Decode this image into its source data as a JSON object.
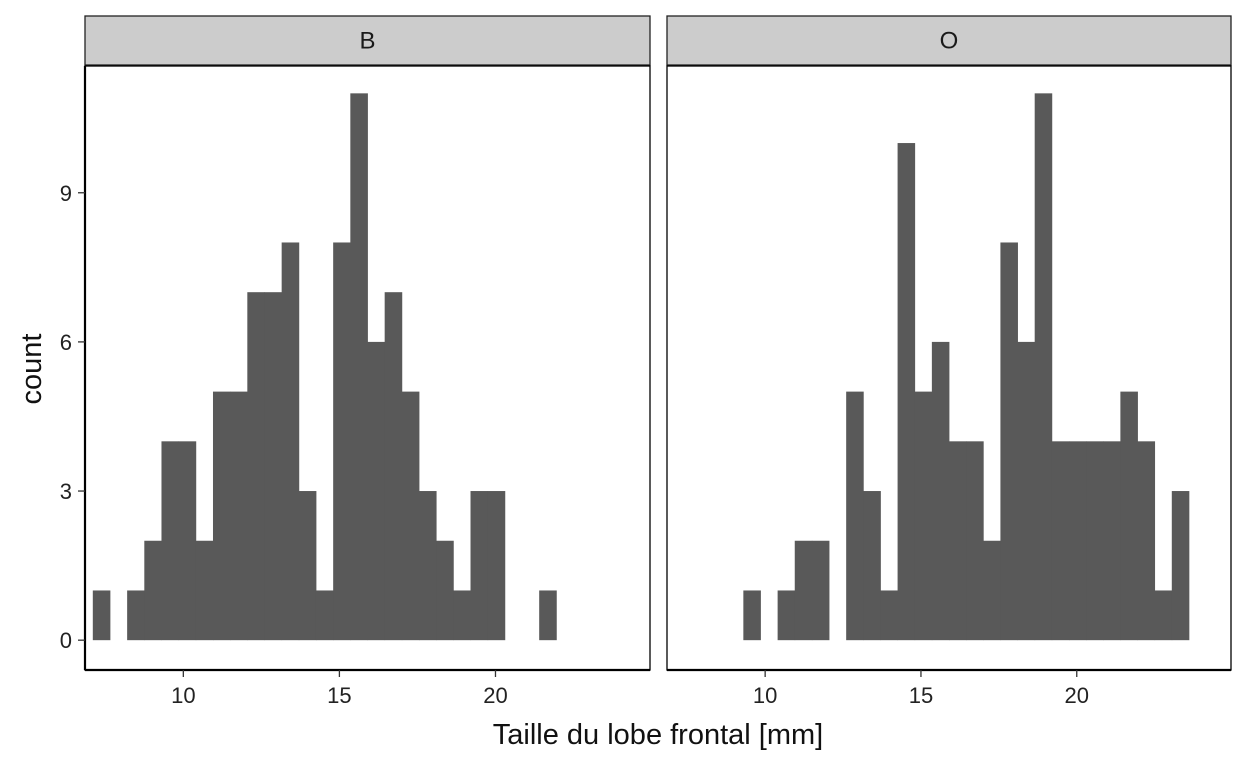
{
  "chart_data": {
    "type": "bar",
    "style": "faceted-histogram",
    "xlabel": "Taille du lobe frontal  [mm]",
    "ylabel": "count",
    "bar_color": "#595959",
    "strip_color": "#cccccc",
    "grid": false,
    "x_ticks": [
      10,
      15,
      20
    ],
    "x_tick_labels": [
      "10",
      "15",
      "20"
    ],
    "y_ticks": [
      0,
      3,
      6,
      9
    ],
    "y_tick_labels": [
      "0",
      "3",
      "6",
      "9"
    ],
    "xlim": [
      6.85,
      24.95
    ],
    "ylim": [
      -0.6,
      11.55
    ],
    "bin_width": 0.55,
    "facets": [
      {
        "label": "B",
        "bins": [
          {
            "x0": 7.1,
            "count": 1
          },
          {
            "x0": 7.65,
            "count": 0
          },
          {
            "x0": 8.2,
            "count": 1
          },
          {
            "x0": 8.75,
            "count": 2
          },
          {
            "x0": 9.3,
            "count": 4
          },
          {
            "x0": 9.85,
            "count": 4
          },
          {
            "x0": 10.4,
            "count": 2
          },
          {
            "x0": 10.95,
            "count": 5
          },
          {
            "x0": 11.5,
            "count": 5
          },
          {
            "x0": 12.05,
            "count": 7
          },
          {
            "x0": 12.6,
            "count": 7
          },
          {
            "x0": 13.15,
            "count": 8
          },
          {
            "x0": 13.7,
            "count": 3
          },
          {
            "x0": 14.25,
            "count": 1
          },
          {
            "x0": 14.8,
            "count": 8
          },
          {
            "x0": 15.35,
            "count": 11
          },
          {
            "x0": 15.9,
            "count": 6
          },
          {
            "x0": 16.45,
            "count": 7
          },
          {
            "x0": 17.0,
            "count": 5
          },
          {
            "x0": 17.55,
            "count": 3
          },
          {
            "x0": 18.1,
            "count": 2
          },
          {
            "x0": 18.65,
            "count": 1
          },
          {
            "x0": 19.2,
            "count": 3
          },
          {
            "x0": 19.75,
            "count": 3
          },
          {
            "x0": 20.3,
            "count": 0
          },
          {
            "x0": 20.85,
            "count": 0
          },
          {
            "x0": 21.4,
            "count": 1
          }
        ]
      },
      {
        "label": "O",
        "bins": [
          {
            "x0": 9.3,
            "count": 1
          },
          {
            "x0": 9.85,
            "count": 0
          },
          {
            "x0": 10.4,
            "count": 1
          },
          {
            "x0": 10.95,
            "count": 2
          },
          {
            "x0": 11.5,
            "count": 2
          },
          {
            "x0": 12.05,
            "count": 0
          },
          {
            "x0": 12.6,
            "count": 5
          },
          {
            "x0": 13.15,
            "count": 3
          },
          {
            "x0": 13.7,
            "count": 1
          },
          {
            "x0": 14.25,
            "count": 10
          },
          {
            "x0": 14.8,
            "count": 5
          },
          {
            "x0": 15.35,
            "count": 6
          },
          {
            "x0": 15.9,
            "count": 4
          },
          {
            "x0": 16.45,
            "count": 4
          },
          {
            "x0": 17.0,
            "count": 2
          },
          {
            "x0": 17.55,
            "count": 8
          },
          {
            "x0": 18.1,
            "count": 6
          },
          {
            "x0": 18.65,
            "count": 11
          },
          {
            "x0": 19.2,
            "count": 4
          },
          {
            "x0": 19.75,
            "count": 4
          },
          {
            "x0": 20.3,
            "count": 4
          },
          {
            "x0": 20.85,
            "count": 4
          },
          {
            "x0": 21.4,
            "count": 5
          },
          {
            "x0": 21.95,
            "count": 4
          },
          {
            "x0": 22.5,
            "count": 1
          },
          {
            "x0": 23.05,
            "count": 3
          }
        ]
      }
    ]
  }
}
